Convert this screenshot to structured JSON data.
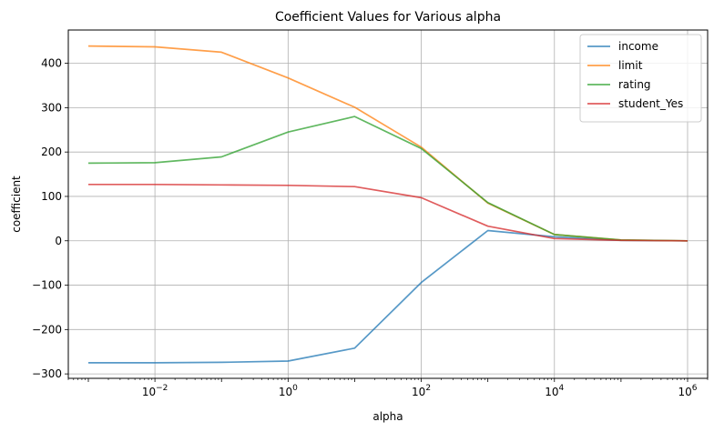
{
  "chart_data": {
    "type": "line",
    "title": "Coefficient Values for Various alpha",
    "xlabel": "alpha",
    "ylabel": "coefficient",
    "xscale": "log",
    "xlim": [
      0.0005,
      2000000
    ],
    "ylim": [
      -310,
      475
    ],
    "grid": true,
    "legend": "top-right",
    "x": [
      0.001,
      0.01,
      0.1,
      1,
      10,
      100,
      1000,
      10000,
      100000,
      1000000
    ],
    "x_ticks": [
      {
        "value": 0.01,
        "base": "10",
        "exp": "−2"
      },
      {
        "value": 1,
        "base": "10",
        "exp": "0"
      },
      {
        "value": 100,
        "base": "10",
        "exp": "2"
      },
      {
        "value": 10000,
        "base": "10",
        "exp": "4"
      },
      {
        "value": 1000000,
        "base": "10",
        "exp": "6"
      }
    ],
    "y_ticks": [
      {
        "value": -300,
        "label": "−300"
      },
      {
        "value": -200,
        "label": "−200"
      },
      {
        "value": -100,
        "label": "−100"
      },
      {
        "value": 0,
        "label": "0"
      },
      {
        "value": 100,
        "label": "100"
      },
      {
        "value": 200,
        "label": "200"
      },
      {
        "value": 300,
        "label": "300"
      },
      {
        "value": 400,
        "label": "400"
      }
    ],
    "series": [
      {
        "name": "income",
        "color": "#1f77b4",
        "values": [
          -275,
          -275,
          -274,
          -271,
          -242,
          -94,
          23,
          9,
          1,
          0
        ]
      },
      {
        "name": "limit",
        "color": "#ff7f0e",
        "values": [
          439,
          437,
          425,
          367,
          301,
          211,
          85,
          14,
          2,
          0
        ]
      },
      {
        "name": "rating",
        "color": "#2ca02c",
        "values": [
          175,
          176,
          189,
          245,
          280,
          208,
          86,
          14,
          2,
          0
        ]
      },
      {
        "name": "student_Yes",
        "color": "#d62728",
        "values": [
          127,
          127,
          126,
          125,
          122,
          97,
          33,
          5,
          1,
          0
        ]
      }
    ]
  }
}
